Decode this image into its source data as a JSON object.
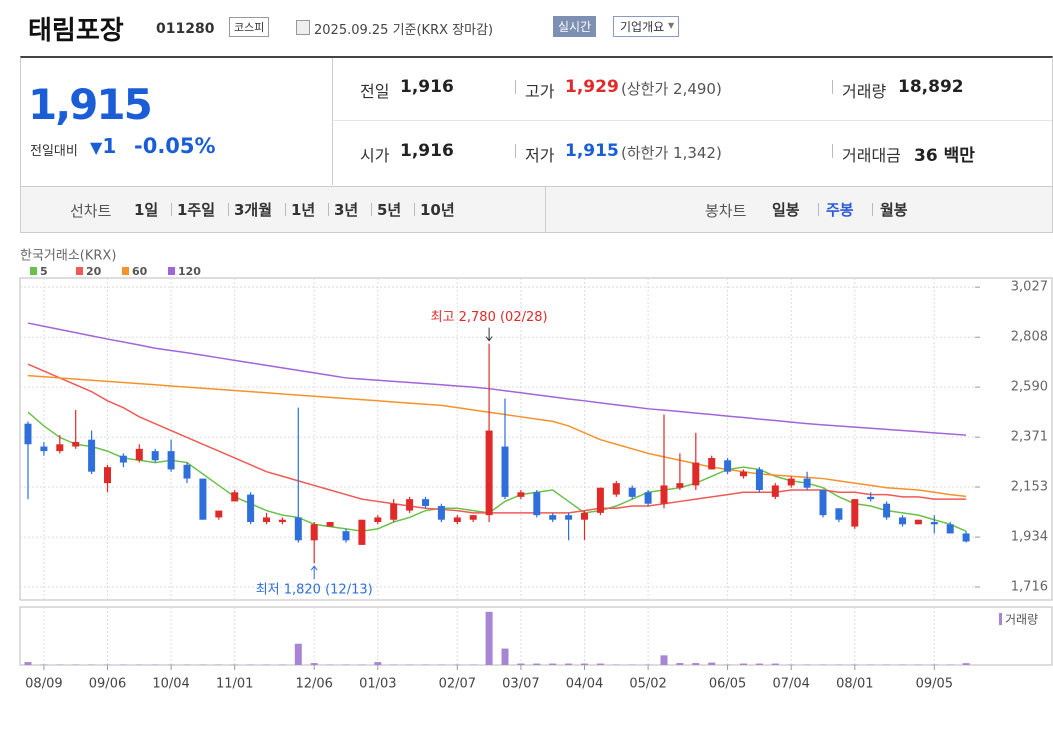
{
  "header": {
    "name": "태림포장",
    "code": "011280",
    "market": "코스피",
    "date": "2025.09.25 기준(KRX 장마감)",
    "realtime": "실시간",
    "company": "기업개요"
  },
  "quote": {
    "price": "1,915",
    "change_label": "전일대비",
    "change": "1",
    "change_pct": "-0.05%",
    "fields": [
      {
        "label": "전일",
        "value": "1,916"
      },
      {
        "label": "고가",
        "value": "1,929",
        "sub": "(상한가 2,490)"
      },
      {
        "label": "거래량",
        "value": "18,892"
      },
      {
        "label": "시가",
        "value": "1,916"
      },
      {
        "label": "저가",
        "value": "1,915",
        "sub": "(하한가 1,342)"
      },
      {
        "label": "거래대금",
        "value": "36 백만"
      }
    ]
  },
  "toolbar": {
    "line_label": "선차트",
    "line_periods": [
      "1일",
      "1주일",
      "3개월",
      "1년",
      "3년",
      "5년",
      "10년"
    ],
    "candle_label": "봉차트",
    "candle_periods": [
      "일봉",
      "주봉",
      "월봉"
    ],
    "selected_candle_period": 1
  },
  "chart_data": {
    "type": "candlestick",
    "source": "한국거래소(KRX)",
    "categories": [
      null,
      "08/09",
      null,
      null,
      null,
      "09/06",
      null,
      null,
      null,
      "10/04",
      null,
      null,
      null,
      "11/01",
      null,
      null,
      null,
      null,
      "12/06",
      null,
      null,
      null,
      "01/03",
      null,
      null,
      null,
      null,
      "02/07",
      null,
      null,
      null,
      "03/07",
      null,
      null,
      null,
      "04/04",
      null,
      null,
      null,
      "05/02",
      null,
      null,
      null,
      null,
      "06/05",
      null,
      null,
      null,
      "07/04",
      null,
      null,
      null,
      "08/01",
      null,
      null,
      null,
      null,
      "09/05",
      null,
      null
    ],
    "open": [
      2430,
      2330,
      2310,
      2330,
      2360,
      2170,
      2290,
      2270,
      2310,
      2310,
      2250,
      2190,
      2020,
      2090,
      2120,
      2000,
      2000,
      2020,
      1920,
      1980,
      1960,
      1900,
      2000,
      2010,
      2050,
      2100,
      2070,
      2000,
      2010,
      2030,
      2330,
      2110,
      2130,
      2030,
      2030,
      2010,
      2040,
      2120,
      2150,
      2130,
      2080,
      2150,
      2160,
      2230,
      2270,
      2200,
      2230,
      2110,
      2160,
      2190,
      2140,
      2060,
      1980,
      2110,
      2080,
      2020,
      1990,
      2000,
      1990,
      1950
    ],
    "high": [
      2440,
      2350,
      2380,
      2490,
      2400,
      2250,
      2300,
      2340,
      2320,
      2360,
      2260,
      2190,
      2050,
      2140,
      2130,
      2040,
      2020,
      2500,
      2000,
      2000,
      1970,
      2010,
      2030,
      2100,
      2110,
      2110,
      2080,
      2030,
      2030,
      2780,
      2540,
      2140,
      2140,
      2040,
      2040,
      2050,
      2150,
      2180,
      2160,
      2140,
      2470,
      2300,
      2390,
      2290,
      2280,
      2230,
      2240,
      2170,
      2200,
      2220,
      2140,
      2060,
      2100,
      2130,
      2090,
      2030,
      2010,
      2030,
      2000,
      1960
    ],
    "low": [
      2100,
      2290,
      2300,
      2320,
      2210,
      2130,
      2240,
      2260,
      2260,
      2220,
      2170,
      2010,
      2010,
      2090,
      1990,
      1990,
      1990,
      1910,
      1820,
      1980,
      1910,
      1900,
      1990,
      2000,
      2040,
      2060,
      2000,
      1990,
      2000,
      2000,
      2100,
      2100,
      2020,
      2000,
      1920,
      1920,
      2030,
      2110,
      2100,
      2070,
      2060,
      2140,
      2140,
      2230,
      2210,
      2190,
      2130,
      2100,
      2150,
      2140,
      2020,
      2000,
      1970,
      2090,
      2010,
      1980,
      1990,
      1950,
      1950,
      1910
    ],
    "close": [
      2340,
      2310,
      2340,
      2350,
      2220,
      2240,
      2260,
      2320,
      2270,
      2230,
      2190,
      2010,
      2050,
      2130,
      2000,
      2020,
      2010,
      1920,
      1990,
      2000,
      1920,
      2010,
      2020,
      2080,
      2100,
      2070,
      2010,
      2020,
      2030,
      2400,
      2110,
      2130,
      2030,
      2010,
      2010,
      2040,
      2150,
      2170,
      2110,
      2080,
      2160,
      2170,
      2260,
      2280,
      2220,
      2220,
      2140,
      2160,
      2190,
      2150,
      2030,
      2010,
      2100,
      2100,
      2020,
      1990,
      2010,
      1990,
      1950,
      1915
    ],
    "up_color": "#e02a2a",
    "down_color": "#2f6fdc",
    "series": [
      {
        "name": "5",
        "color": "#6cc04a",
        "values": [
          2480,
          2420,
          2370,
          2340,
          2330,
          2310,
          2280,
          2270,
          2260,
          2270,
          2260,
          2210,
          2160,
          2110,
          2080,
          2050,
          2030,
          2020,
          1990,
          1980,
          1970,
          1960,
          1970,
          2000,
          2020,
          2050,
          2060,
          2060,
          2050,
          2040,
          2090,
          2120,
          2130,
          2140,
          2090,
          2040,
          2050,
          2070,
          2100,
          2130,
          2140,
          2150,
          2170,
          2200,
          2230,
          2240,
          2230,
          2200,
          2180,
          2170,
          2150,
          2110,
          2080,
          2070,
          2050,
          2040,
          2030,
          2010,
          1990,
          1960
        ]
      },
      {
        "name": "20",
        "color": "#ef5a55",
        "values": [
          2690,
          2660,
          2630,
          2600,
          2570,
          2530,
          2500,
          2460,
          2430,
          2400,
          2370,
          2340,
          2310,
          2280,
          2250,
          2220,
          2200,
          2180,
          2160,
          2140,
          2120,
          2100,
          2090,
          2080,
          2070,
          2060,
          2055,
          2050,
          2040,
          2040,
          2040,
          2040,
          2040,
          2040,
          2040,
          2050,
          2060,
          2060,
          2070,
          2070,
          2080,
          2090,
          2100,
          2110,
          2120,
          2130,
          2130,
          2130,
          2140,
          2140,
          2140,
          2130,
          2130,
          2120,
          2120,
          2110,
          2110,
          2100,
          2100,
          2100
        ]
      },
      {
        "name": "60",
        "color": "#f5922b",
        "values": [
          2640,
          2635,
          2630,
          2625,
          2620,
          2615,
          2610,
          2605,
          2600,
          2595,
          2590,
          2585,
          2580,
          2575,
          2570,
          2565,
          2560,
          2555,
          2550,
          2545,
          2540,
          2535,
          2530,
          2525,
          2520,
          2515,
          2510,
          2500,
          2490,
          2480,
          2470,
          2460,
          2450,
          2440,
          2420,
          2390,
          2360,
          2340,
          2320,
          2300,
          2285,
          2270,
          2255,
          2240,
          2230,
          2220,
          2210,
          2205,
          2200,
          2195,
          2190,
          2180,
          2170,
          2160,
          2150,
          2145,
          2140,
          2130,
          2120,
          2112
        ]
      },
      {
        "name": "120",
        "color": "#a066d8",
        "values": [
          2870,
          2856,
          2842,
          2828,
          2814,
          2800,
          2787,
          2774,
          2760,
          2750,
          2740,
          2729,
          2718,
          2707,
          2696,
          2685,
          2674,
          2663,
          2652,
          2641,
          2630,
          2625,
          2620,
          2615,
          2610,
          2605,
          2600,
          2595,
          2590,
          2583,
          2574,
          2565,
          2556,
          2547,
          2538,
          2530,
          2521,
          2512,
          2504,
          2495,
          2489,
          2483,
          2476,
          2470,
          2463,
          2457,
          2450,
          2444,
          2437,
          2430,
          2425,
          2420,
          2415,
          2410,
          2405,
          2400,
          2395,
          2390,
          2385,
          2380
        ]
      }
    ],
    "volume": {
      "name": "거래량",
      "color": "#a884d4",
      "lim": [
        0,
        600000
      ],
      "values": [
        30000,
        5000,
        5000,
        5000,
        5000,
        5000,
        5000,
        5000,
        5000,
        5000,
        5000,
        5000,
        5000,
        5000,
        5000,
        5000,
        5000,
        220000,
        20000,
        5000,
        5000,
        5000,
        30000,
        5000,
        5000,
        5000,
        5000,
        5000,
        5000,
        550000,
        170000,
        15000,
        15000,
        15000,
        15000,
        15000,
        15000,
        5000,
        5000,
        5000,
        100000,
        20000,
        20000,
        25000,
        5000,
        15000,
        15000,
        15000,
        5000,
        5000,
        5000,
        5000,
        5000,
        5000,
        5000,
        5000,
        5000,
        5000,
        5000,
        18892
      ]
    },
    "ylim": [
      1659,
      3067
    ],
    "yticks": [
      {
        "value": 3027,
        "label": "3,027"
      },
      {
        "value": 2808,
        "label": "2,808"
      },
      {
        "value": 2590,
        "label": "2,590"
      },
      {
        "value": 2371,
        "label": "2,371"
      },
      {
        "value": 2153,
        "label": "2,153"
      },
      {
        "value": 1934,
        "label": "1,934"
      },
      {
        "value": 1716,
        "label": "1,716"
      }
    ],
    "grid": true,
    "high_label": "최고 2,780 (02/28)",
    "low_label": "최저 1,820 (12/13)"
  }
}
